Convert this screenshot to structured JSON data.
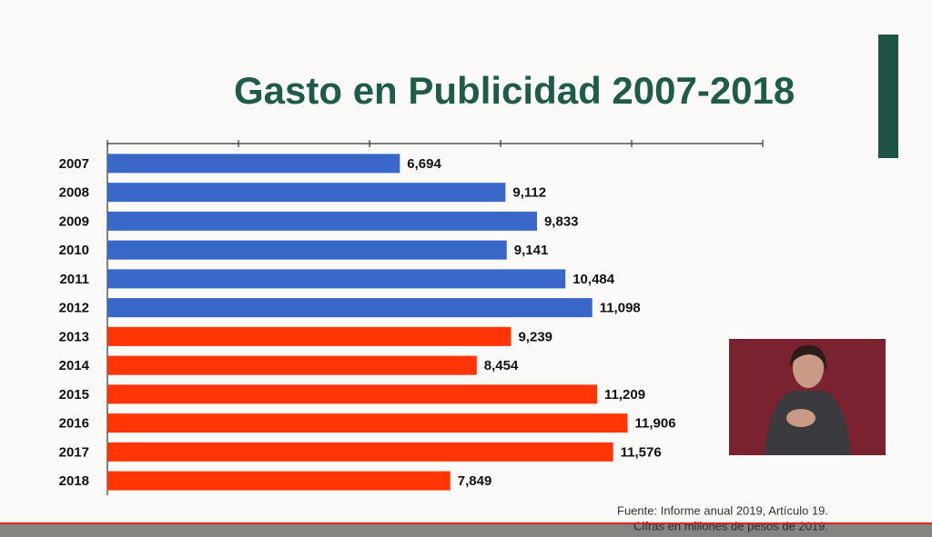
{
  "chart_data": {
    "type": "barh",
    "title": "Gasto en Publicidad 2007-2018",
    "categories": [
      "2007",
      "2008",
      "2009",
      "2010",
      "2011",
      "2012",
      "2013",
      "2014",
      "2015",
      "2016",
      "2017",
      "2018"
    ],
    "values": [
      6694,
      9112,
      9833,
      9141,
      10484,
      11098,
      9239,
      8454,
      11209,
      11906,
      11576,
      7849
    ],
    "value_labels": [
      "6,694",
      "9,112",
      "9,833",
      "9,141",
      "10,484",
      "11,098",
      "9,239",
      "8,454",
      "11,209",
      "11,906",
      "11,576",
      "7,849"
    ],
    "colors": [
      "#3a68c9",
      "#3a68c9",
      "#3a68c9",
      "#3a68c9",
      "#3a68c9",
      "#3a68c9",
      "#ff3503",
      "#ff3503",
      "#ff3503",
      "#ff3503",
      "#ff3503",
      "#ff3503"
    ],
    "xlim": [
      0,
      15000
    ],
    "xticks": [
      0,
      3000,
      6000,
      9000,
      12000,
      15000
    ],
    "source": [
      "Fuente: Informe anual 2019, Artículo 19.",
      "Cifras en millones de pesos de 2019."
    ]
  }
}
